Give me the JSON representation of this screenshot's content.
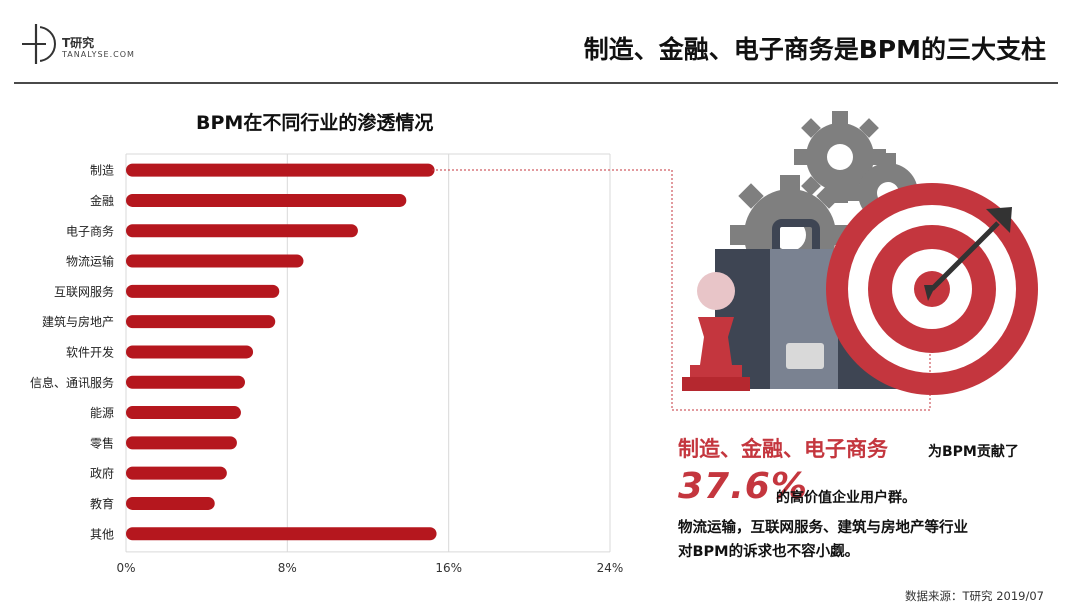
{
  "brand": {
    "name": "T研究",
    "sub": "TANALYSE.COM"
  },
  "page_title": "制造、金融、电子商务是BPM的三大支柱",
  "chart_data": {
    "type": "bar",
    "orientation": "horizontal",
    "title": "BPM在不同行业的渗透情况",
    "categories": [
      "制造",
      "金融",
      "电子商务",
      "物流运输",
      "互联网服务",
      "建筑与房地产",
      "软件开发",
      "信息、通讯服务",
      "能源",
      "零售",
      "政府",
      "教育",
      "其他"
    ],
    "values": [
      15.3,
      13.9,
      11.5,
      8.8,
      7.6,
      7.4,
      6.3,
      5.9,
      5.7,
      5.5,
      5.0,
      4.4,
      15.4
    ],
    "xlim": [
      0,
      24
    ],
    "xticks": [
      "0%",
      "8%",
      "16%",
      "24%"
    ],
    "grid": true,
    "bar_color": "#b5171e"
  },
  "callout": {
    "highlight": "制造、金融、电子商务",
    "highlight_tail": "为BPM贡献了",
    "big_pct": "37.6%",
    "pct_tail": "的高价值企业用户群。",
    "note_line1": "物流运输，互联网服务、建筑与房地产等行业",
    "note_line2": "对BPM的诉求也不容小觑。"
  },
  "source": "数据来源：T研究 2019/07",
  "colors": {
    "accent": "#c4363e",
    "bar": "#b5171e",
    "gear": "#7f7f7f",
    "case_dark": "#3e4553",
    "case_light": "#7a8291"
  }
}
